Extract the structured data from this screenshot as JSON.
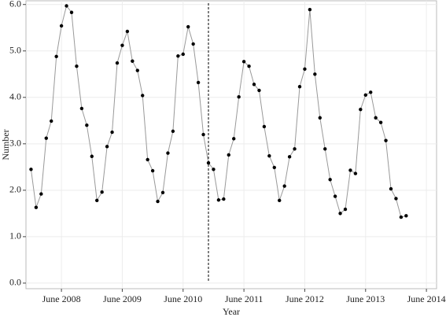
{
  "chart_data": {
    "type": "line",
    "x_label": "Year",
    "y_label": "Number",
    "x": [
      "2007-12",
      "2008-01",
      "2008-02",
      "2008-03",
      "2008-04",
      "2008-05",
      "2008-06",
      "2008-07",
      "2008-08",
      "2008-09",
      "2008-10",
      "2008-11",
      "2008-12",
      "2009-01",
      "2009-02",
      "2009-03",
      "2009-04",
      "2009-05",
      "2009-06",
      "2009-07",
      "2009-08",
      "2009-09",
      "2009-10",
      "2009-11",
      "2009-12",
      "2010-01",
      "2010-02",
      "2010-03",
      "2010-04",
      "2010-05",
      "2010-06",
      "2010-07",
      "2010-08",
      "2010-09",
      "2010-10",
      "2010-11",
      "2010-12",
      "2011-01",
      "2011-02",
      "2011-03",
      "2011-04",
      "2011-05",
      "2011-06",
      "2011-07",
      "2011-08",
      "2011-09",
      "2011-10",
      "2011-11",
      "2011-12",
      "2012-01",
      "2012-02",
      "2012-03",
      "2012-04",
      "2012-05",
      "2012-06",
      "2012-07",
      "2012-08",
      "2012-09",
      "2012-10",
      "2012-11",
      "2012-12",
      "2013-01",
      "2013-02",
      "2013-03",
      "2013-04",
      "2013-05",
      "2013-06",
      "2013-07",
      "2013-08",
      "2013-09",
      "2013-10",
      "2013-11",
      "2013-12",
      "2014-01",
      "2014-02"
    ],
    "series": [
      {
        "color": "#999999",
        "marker_color": "#000000",
        "values": [
          2.45,
          1.63,
          1.92,
          3.12,
          3.49,
          4.88,
          5.54,
          5.97,
          5.83,
          4.67,
          3.76,
          3.4,
          2.73,
          1.78,
          1.96,
          2.94,
          3.25,
          4.74,
          5.12,
          5.42,
          4.78,
          4.58,
          4.04,
          2.66,
          2.42,
          1.76,
          1.95,
          2.8,
          3.27,
          4.89,
          4.93,
          5.52,
          5.15,
          4.32,
          3.2,
          2.59,
          2.45,
          1.79,
          1.81,
          2.76,
          3.11,
          4.01,
          4.77,
          4.67,
          4.28,
          4.15,
          3.37,
          2.74,
          2.49,
          1.78,
          2.09,
          2.72,
          2.89,
          4.23,
          4.61,
          5.89,
          4.5,
          3.56,
          2.89,
          2.23,
          1.87,
          1.5,
          1.59,
          2.43,
          2.36,
          3.74,
          4.05,
          4.11,
          3.56,
          3.46,
          3.07,
          2.03,
          1.82,
          1.42,
          1.45
        ]
      }
    ],
    "vline": "2010-11",
    "xlim": [
      "2007-11",
      "2014-08"
    ],
    "xticks": [
      {
        "value": "2008-06",
        "label": "June 2008"
      },
      {
        "value": "2009-06",
        "label": "June 2009"
      },
      {
        "value": "2010-06",
        "label": "June 2010"
      },
      {
        "value": "2011-06",
        "label": "June 2011"
      },
      {
        "value": "2012-06",
        "label": "June 2012"
      },
      {
        "value": "2013-06",
        "label": "June 2013"
      },
      {
        "value": "2014-06",
        "label": "June 2014"
      }
    ],
    "ylim": [
      -0.12,
      6.08
    ],
    "yticks": [
      {
        "value": 0,
        "label": "0.0"
      },
      {
        "value": 1,
        "label": "1.0"
      },
      {
        "value": 2,
        "label": "2.0"
      },
      {
        "value": 3,
        "label": "3.0"
      },
      {
        "value": 4,
        "label": "4.0"
      },
      {
        "value": 5,
        "label": "5.0"
      },
      {
        "value": 6,
        "label": "6.0"
      }
    ],
    "grid": true
  }
}
